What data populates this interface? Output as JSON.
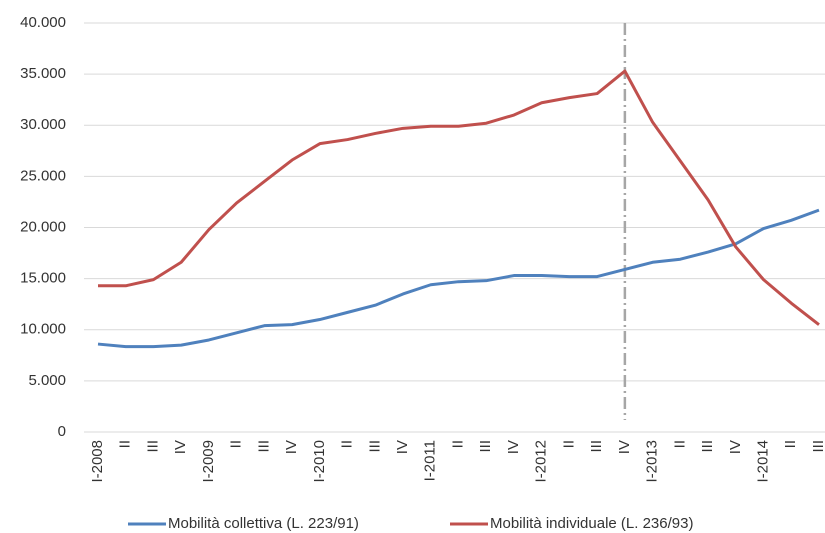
{
  "chart_data": {
    "type": "line",
    "categories": [
      "I-2008",
      "II",
      "III",
      "IV",
      "I-2009",
      "II",
      "III",
      "IV",
      "I-2010",
      "II",
      "III",
      "IV",
      "I-2011",
      "II",
      "III",
      "IV",
      "I-2012",
      "II",
      "III",
      "IV",
      "I-2013",
      "II",
      "III",
      "IV",
      "I-2014",
      "II",
      "III"
    ],
    "series": [
      {
        "name": "Mobilità collettiva (L. 223/91)",
        "color": "#4f81bd",
        "values": [
          8600,
          8350,
          8350,
          8500,
          9000,
          9700,
          10400,
          10500,
          11000,
          11700,
          12400,
          13500,
          14400,
          14700,
          14800,
          15300,
          15300,
          15200,
          15200,
          15900,
          16600,
          16900,
          17600,
          18400,
          19900,
          20700,
          21700
        ]
      },
      {
        "name": "Mobilità individuale (L. 236/93)",
        "color": "#c0504d",
        "values": [
          14300,
          14300,
          14900,
          16600,
          19800,
          22400,
          24500,
          26600,
          28200,
          28600,
          29200,
          29700,
          29900,
          29900,
          30200,
          31000,
          32200,
          32700,
          33100,
          35300,
          30300,
          26500,
          22700,
          18100,
          14900,
          12600,
          10500
        ]
      }
    ],
    "ylim": [
      0,
      40000
    ],
    "yticks": [
      0,
      {
        "value": 5000,
        "label": "5.000"
      },
      {
        "value": 10000,
        "label": "10.000"
      },
      {
        "value": 15000,
        "label": "15.000"
      },
      {
        "value": 20000,
        "label": "20.000"
      },
      {
        "value": 25000,
        "label": "25.000"
      },
      {
        "value": 30000,
        "label": "30.000"
      },
      {
        "value": 35000,
        "label": "35.000"
      },
      {
        "value": 40000,
        "label": "40.000"
      }
    ],
    "grid": true,
    "legend": "bottom",
    "vertical_line": {
      "category_index": 19,
      "color": "#a6a6a6"
    }
  }
}
